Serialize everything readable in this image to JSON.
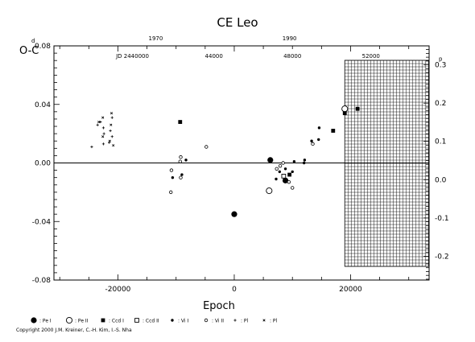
{
  "chart_data": {
    "type": "scatter",
    "title": "CE Leo",
    "xlabel": "Epoch",
    "ylabel": "O-C",
    "xlim": [
      -31000,
      33500
    ],
    "ylim": [
      -0.08,
      0.08
    ],
    "y2lim": [
      -0.2622,
      0.3497
    ],
    "x_ticks": [
      -20000,
      0,
      20000
    ],
    "x_tick_labels": [
      "-20000",
      "0",
      "20000"
    ],
    "y_ticks": [
      -0.08,
      -0.04,
      0.0,
      0.04,
      0.08
    ],
    "y_tick_labels": [
      "-0.08",
      "-0.04",
      "0.00",
      "0.04",
      "0.08"
    ],
    "y_top_label": "0.08",
    "y_top_superscript": "d",
    "y2_ticks": [
      -0.2,
      -0.1,
      0.0,
      0.1,
      0.2,
      0.3
    ],
    "y2_tick_labels": [
      "-0.2",
      "-0.1",
      "0.0",
      "0.1",
      "0.2",
      "0.3"
    ],
    "y2_top_superscript": "p",
    "top_axis_years": [
      {
        "x": -13500,
        "label": "1970"
      },
      {
        "x": 9500,
        "label": "1990"
      }
    ],
    "top_axis_jd": [
      {
        "x": -17500,
        "label": "JD 2440000"
      },
      {
        "x": -3500,
        "label": "44000"
      },
      {
        "x": 10000,
        "label": "48000"
      },
      {
        "x": 23500,
        "label": "52000"
      }
    ],
    "hatched_region_x": [
      19000,
      33500
    ],
    "series": [
      {
        "symbol": "filled-circle-large",
        "values": [
          [
            0,
            -0.035
          ],
          [
            6200,
            0.002
          ],
          [
            8800,
            -0.012
          ]
        ]
      },
      {
        "symbol": "open-circle-large",
        "values": [
          [
            6000,
            -0.019
          ],
          [
            19000,
            0.037
          ]
        ]
      },
      {
        "symbol": "filled-square",
        "values": [
          [
            -9300,
            0.028
          ],
          [
            17000,
            0.022
          ],
          [
            19000,
            0.034
          ],
          [
            9500,
            -0.008
          ],
          [
            21200,
            0.037
          ]
        ]
      },
      {
        "symbol": "open-square",
        "values": [
          [
            8500,
            -0.009
          ]
        ]
      },
      {
        "symbol": "filled-circle-small",
        "values": [
          [
            -10600,
            -0.01
          ],
          [
            -9000,
            -0.008
          ],
          [
            -8300,
            0.002
          ],
          [
            7200,
            -0.011
          ],
          [
            7800,
            -0.006
          ],
          [
            8800,
            -0.004
          ],
          [
            10000,
            -0.006
          ],
          [
            10300,
            0.001
          ],
          [
            12000,
            0.0
          ],
          [
            12100,
            0.002
          ],
          [
            13300,
            0.015
          ],
          [
            14500,
            0.016
          ],
          [
            14600,
            0.024
          ]
        ]
      },
      {
        "symbol": "open-circle-small",
        "values": [
          [
            -10900,
            -0.02
          ],
          [
            -10800,
            -0.005
          ],
          [
            -9200,
            -0.01
          ],
          [
            -9300,
            0.001
          ],
          [
            -9200,
            0.004
          ],
          [
            -4800,
            0.011
          ],
          [
            7300,
            -0.004
          ],
          [
            7900,
            -0.002
          ],
          [
            8400,
            0.0
          ],
          [
            9400,
            -0.013
          ],
          [
            10000,
            -0.017
          ],
          [
            13500,
            0.013
          ]
        ]
      },
      {
        "symbol": "plus",
        "values": [
          [
            -24500,
            0.011
          ],
          [
            -23500,
            0.026
          ],
          [
            -23000,
            0.028
          ],
          [
            -22500,
            0.013
          ],
          [
            -22500,
            0.024
          ],
          [
            -22400,
            0.02
          ],
          [
            -21500,
            0.014
          ],
          [
            -21300,
            0.022
          ],
          [
            -21000,
            0.018
          ],
          [
            -21000,
            0.031
          ]
        ]
      },
      {
        "symbol": "cross",
        "values": [
          [
            -23300,
            0.028
          ],
          [
            -22600,
            0.018
          ],
          [
            -22600,
            0.031
          ],
          [
            -21400,
            0.015
          ],
          [
            -21200,
            0.026
          ],
          [
            -21100,
            0.034
          ],
          [
            -20800,
            0.012
          ]
        ]
      }
    ],
    "legend_placement": "bottom",
    "legend": [
      {
        "symbol": "filled-circle-large",
        "label": ": Pe I"
      },
      {
        "symbol": "open-circle-large",
        "label": ": Pe II"
      },
      {
        "symbol": "filled-square",
        "label": ": Ccd I"
      },
      {
        "symbol": "open-square",
        "label": ": Ccd II"
      },
      {
        "symbol": "filled-circle-small",
        "label": ": Vi I"
      },
      {
        "symbol": "open-circle-small",
        "label": ": Vi II"
      },
      {
        "symbol": "plus",
        "label": ": Pl"
      },
      {
        "symbol": "cross",
        "label": ": Pl"
      }
    ],
    "copyright": "Copyright 2000 J.M. Kreiner, C.-H. Kim, I.-S. Nha"
  }
}
